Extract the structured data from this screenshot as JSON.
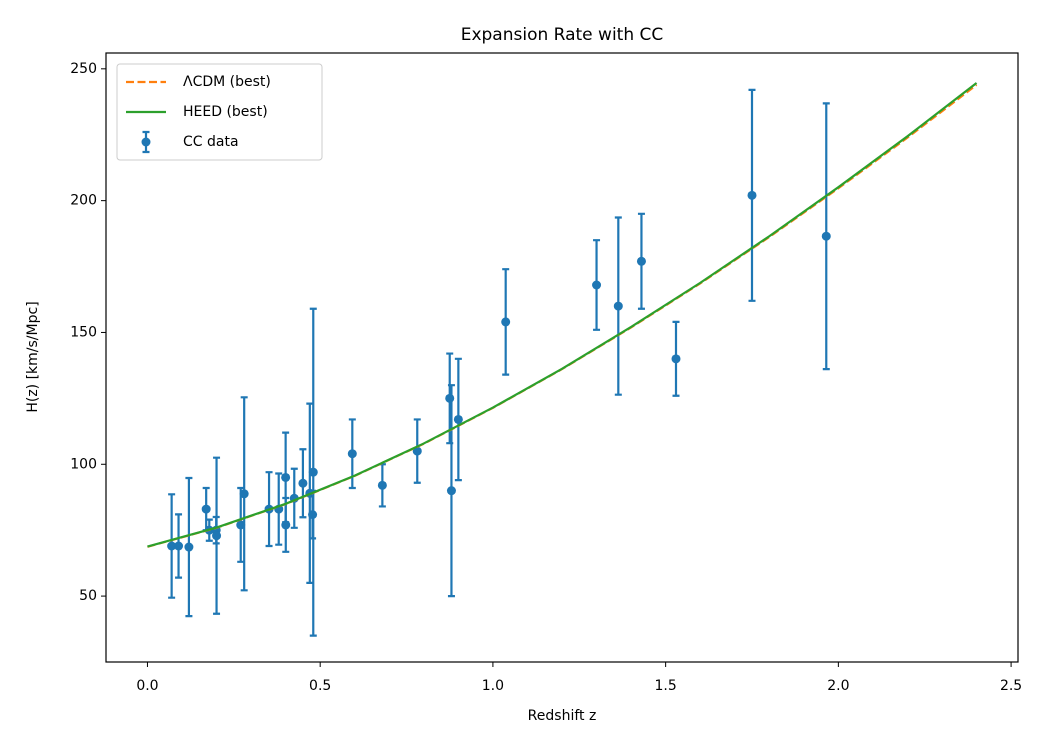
{
  "chart_data": {
    "type": "line",
    "title": "Expansion Rate with CC",
    "xlabel": "Redshift z",
    "ylabel": "H(z) [km/s/Mpc]",
    "xlim": [
      -0.12,
      2.52
    ],
    "ylim": [
      25,
      256
    ],
    "xticks": [
      {
        "value": 0,
        "label": "0.0"
      },
      0.5,
      {
        "value": 1,
        "label": "1.0"
      },
      1.5,
      {
        "value": 2,
        "label": "2.0"
      },
      2.5
    ],
    "yticks": [
      50,
      100,
      150,
      200,
      250
    ],
    "grid": false,
    "legend": "upper left",
    "series": [
      {
        "name": "ΛCDM (best)",
        "type": "line",
        "style": "dashed",
        "color": "#ff7f0e",
        "x": [
          0,
          0.2,
          0.4,
          0.6,
          0.8,
          1.0,
          1.2,
          1.4,
          1.6,
          1.8,
          2.0,
          2.2,
          2.4
        ],
        "values": [
          68.7,
          75.9,
          84.9,
          95.6,
          107.8,
          121.4,
          136.1,
          151.9,
          168.6,
          186.2,
          204.7,
          223.9,
          243.9
        ]
      },
      {
        "name": "HEED (best)",
        "type": "line",
        "style": "solid",
        "color": "#2ca02c",
        "x": [
          0,
          0.2,
          0.4,
          0.6,
          0.8,
          1.0,
          1.2,
          1.4,
          1.6,
          1.8,
          2.0,
          2.2,
          2.4
        ],
        "values": [
          68.8,
          76.0,
          85.0,
          95.7,
          107.9,
          121.5,
          136.2,
          152.1,
          168.8,
          186.5,
          205.1,
          224.4,
          244.6
        ]
      },
      {
        "name": "CC data",
        "type": "errorbar",
        "color": "#1f77b4",
        "x": [
          0.07,
          0.09,
          0.12,
          0.17,
          0.179,
          0.199,
          0.2,
          0.27,
          0.28,
          0.352,
          0.38,
          0.4,
          0.4004,
          0.425,
          0.45,
          0.47,
          0.478,
          0.48,
          0.593,
          0.68,
          0.781,
          0.875,
          0.88,
          0.9,
          1.037,
          1.3,
          1.363,
          1.43,
          1.53,
          1.75,
          1.965
        ],
        "values": [
          69,
          69,
          68.6,
          83,
          75,
          75,
          72.9,
          77,
          88.8,
          83,
          83,
          95,
          77,
          87.1,
          92.8,
          89,
          80.9,
          97,
          104,
          92,
          105,
          125,
          90,
          117,
          154,
          168,
          160,
          177,
          140,
          202,
          186.5
        ],
        "errors": [
          19.6,
          12,
          26.2,
          8,
          4,
          5,
          29.6,
          14,
          36.6,
          14,
          13.5,
          17,
          10.2,
          11.2,
          12.9,
          34,
          9,
          62,
          13,
          8,
          12,
          17,
          40,
          23,
          20,
          17,
          33.6,
          18,
          14,
          40,
          50.4
        ]
      }
    ]
  }
}
